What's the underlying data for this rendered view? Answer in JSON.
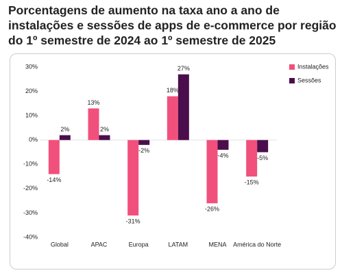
{
  "chart_data": {
    "type": "bar",
    "title": "Porcentagens de aumento na taxa ano a ano de instalações e sessões de apps de e-commerce por região do 1º semestre de 2024 ao 1º semestre de 2025",
    "categories": [
      "Global",
      "APAC",
      "Europa",
      "LATAM",
      "MENA",
      "América do Norte"
    ],
    "series": [
      {
        "name": "Instalações",
        "color": "#f2507c",
        "values": [
          -14,
          13,
          -31,
          18,
          -26,
          -15
        ],
        "value_labels": [
          "-14%",
          "13%",
          "-31%",
          "18%",
          "-26%",
          "-15%"
        ]
      },
      {
        "name": "Sessões",
        "color": "#4b0e4c",
        "values": [
          2,
          2,
          -2,
          27,
          -4,
          -5
        ],
        "value_labels": [
          "2%",
          "2%",
          "-2%",
          "27%",
          "-4%",
          "-5%"
        ]
      }
    ],
    "ylim": [
      -40,
      30
    ],
    "yticks": [
      {
        "value": -40,
        "label": "-40%"
      },
      {
        "value": -30,
        "label": "-30%"
      },
      {
        "value": -20,
        "label": "-20%"
      },
      {
        "value": -10,
        "label": "-10%"
      },
      {
        "value": 0,
        "label": "0%"
      },
      {
        "value": 10,
        "label": "10%"
      },
      {
        "value": 20,
        "label": "20%"
      },
      {
        "value": 30,
        "label": "30%"
      }
    ],
    "grid": false,
    "legend": "top-right"
  }
}
